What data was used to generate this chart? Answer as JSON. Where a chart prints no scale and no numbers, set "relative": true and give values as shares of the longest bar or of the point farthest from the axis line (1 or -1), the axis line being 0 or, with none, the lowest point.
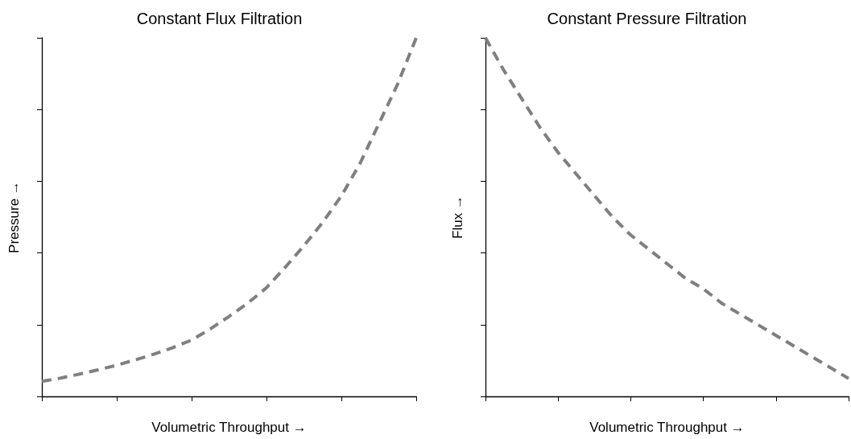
{
  "chart_data": [
    {
      "type": "line",
      "title": "Constant Flux Filtration",
      "xlabel": "Volumetric Throughput →",
      "ylabel": "Pressure →",
      "relative": true,
      "categories": [
        null,
        null,
        null,
        null,
        null,
        null,
        null,
        null,
        null,
        null,
        null,
        null,
        null,
        null,
        null,
        null,
        null,
        null,
        null,
        null,
        null
      ],
      "series": [
        {
          "color": "#7f7f7f",
          "values": [
            0.042,
            0.051,
            0.062,
            0.074,
            0.087,
            0.102,
            0.118,
            0.136,
            0.157,
            0.188,
            0.223,
            0.26,
            0.303,
            0.36,
            0.42,
            0.485,
            0.559,
            0.65,
            0.76,
            0.87,
            1
          ]
        }
      ],
      "grid": false,
      "marker": "none",
      "line_style": "dashed"
    },
    {
      "type": "line",
      "title": "Constant Pressure Filtration",
      "xlabel": "Volumetric Throughput →",
      "ylabel": "Flux →",
      "relative": true,
      "categories": [
        null,
        null,
        null,
        null,
        null,
        null,
        null,
        null,
        null,
        null,
        null,
        null,
        null,
        null,
        null,
        null,
        null,
        null,
        null,
        null,
        null
      ],
      "series": [
        {
          "color": "#7f7f7f",
          "values": [
            1,
            0.91,
            0.83,
            0.75,
            0.68,
            0.62,
            0.56,
            0.5,
            0.45,
            0.41,
            0.37,
            0.33,
            0.3,
            0.26,
            0.23,
            0.2,
            0.17,
            0.14,
            0.11,
            0.08,
            0.05
          ]
        }
      ],
      "grid": false,
      "marker": "none",
      "line_style": "dashed"
    }
  ]
}
